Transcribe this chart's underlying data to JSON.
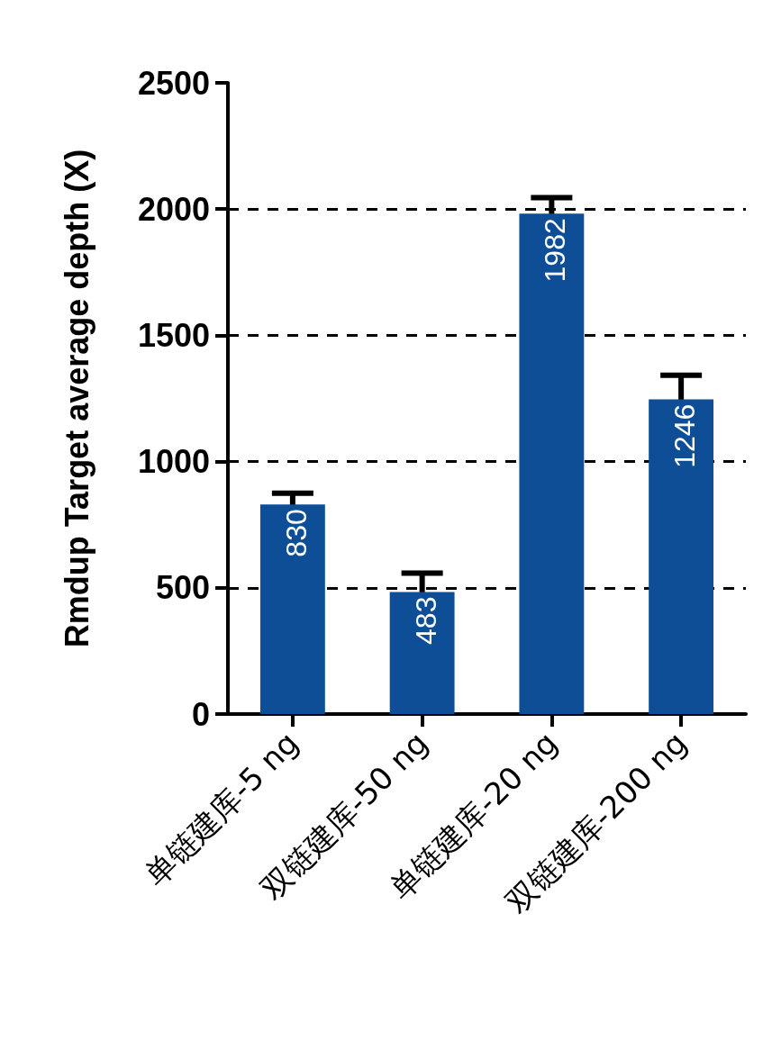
{
  "chart_data": {
    "type": "bar",
    "ylabel": "Rmdup Target average depth (X)",
    "categories": [
      "单链建库-5 ng",
      "双链建库-50 ng",
      "单链建库-20 ng",
      "双链建库-200 ng"
    ],
    "values": [
      830,
      483,
      1982,
      1246
    ],
    "errors": [
      45,
      75,
      63,
      96
    ],
    "color": "#0d4e96",
    "ylim": [
      0,
      2500
    ],
    "yticks": [
      0,
      500,
      1000,
      1500,
      2000,
      2500
    ],
    "grid": "y",
    "data_labels": true
  }
}
